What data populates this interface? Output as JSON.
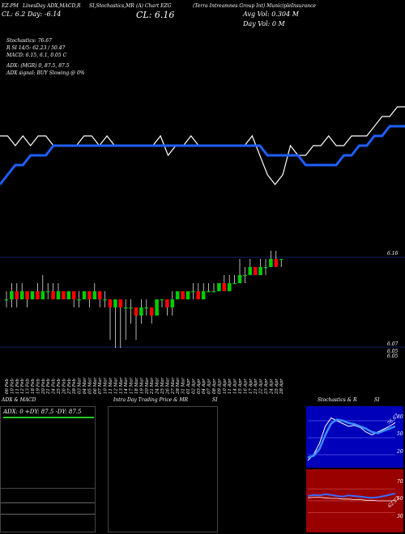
{
  "header": {
    "top_left_small": "EZ-PM",
    "indicators": "LinesDay ADX,MACD,R",
    "stoch_label": "SI,Stochastics,MR",
    "symbol_line": "(A) Chart EZG",
    "company": "(Terra Intreamnes Group Int) MunicipleInsurance",
    "day_open": "CL: 6.2  Day: -6.14",
    "close": "CL: 6.16",
    "avg_vol": "Avg Vol: 0.304  M",
    "day_vol": "Day Vol: 0   M"
  },
  "indicator_readout": {
    "stoch": "Stochastics: 76.67",
    "rsi": "R                    SI 14/5: 62.23 / 50.47",
    "macd": "MACD: 6.15,  6.1,  0.05 C",
    "adx": "ADX:                         (MGR) 0,  87.5,  87.5",
    "adx_signal": "ADX  signal:                               BUY Slowing @ 0%"
  },
  "price_labels": {
    "upper": "6.16",
    "low1": "6.07",
    "low2": "6.05",
    "low3": "6.05"
  },
  "date_labels": [
    "06 Feb",
    "10 Feb",
    "11 Feb",
    "12 Feb",
    "13 Feb",
    "18 Feb",
    "19 Feb",
    "20 Feb",
    "21 Feb",
    "24 Feb",
    "25 Feb",
    "26 Feb",
    "27 Feb",
    "28 Feb",
    "03 Mar",
    "04 Mar",
    "05 Mar",
    "06 Mar",
    "07 Mar",
    "10 Mar",
    "11 Mar",
    "12 Mar",
    "13 Mar",
    "14 Mar",
    "17 Mar",
    "18 Mar",
    "19 Mar",
    "20 Mar",
    "21 Mar",
    "24 Mar",
    "25 Mar",
    "26 Mar",
    "27 Mar",
    "28 Mar",
    "31 Mar",
    "01 Apr",
    "02 Apr",
    "03 Apr",
    "04 Apr",
    "07 Apr",
    "08 Apr",
    "09 Apr",
    "10 Apr",
    "11 Apr",
    "14 Apr",
    "15 Apr",
    "16 Apr",
    "17 Apr",
    "21 Apr",
    "22 Apr",
    "23 Apr",
    "24 Apr",
    "25 Apr",
    "28 Apr"
  ],
  "panels": {
    "adx_title": "ADX  & MACD",
    "adx_readout": "ADX: 0  +DY: 87.5 -DY: 87.5",
    "intraday_title": "Intra  Day Trading Price  & MR",
    "intraday_si": "SI",
    "stoch_title": "Stochastics  & R",
    "stoch_si": "SI",
    "stoch_tick_80": "80",
    "stoch_tick_50": "50",
    "stoch_tick_20": "20",
    "stoch_value": "76.67",
    "rsi_tick_70": "70",
    "rsi_tick_50": "50",
    "rsi_tick_30": "30",
    "rsi_value": "62.23"
  },
  "colors": {
    "up": "#00cc00",
    "down": "#ff0000",
    "blue": "#1f5fff",
    "white": "#ffffff",
    "rsi_bg": "#990000",
    "stoch_bg": "#0000bb",
    "adx_green": "#22cc22"
  },
  "chart_data": {
    "type": "candlestick",
    "price_ylim": [
      6.0,
      6.2
    ],
    "candles": [
      {
        "o": 6.11,
        "c": 6.11,
        "h": 6.12,
        "l": 6.1
      },
      {
        "o": 6.11,
        "c": 6.12,
        "h": 6.13,
        "l": 6.1
      },
      {
        "o": 6.12,
        "c": 6.11,
        "h": 6.13,
        "l": 6.1
      },
      {
        "o": 6.11,
        "c": 6.12,
        "h": 6.13,
        "l": 6.11
      },
      {
        "o": 6.12,
        "c": 6.11,
        "h": 6.12,
        "l": 6.1
      },
      {
        "o": 6.11,
        "c": 6.12,
        "h": 6.12,
        "l": 6.11
      },
      {
        "o": 6.12,
        "c": 6.11,
        "h": 6.13,
        "l": 6.11
      },
      {
        "o": 6.11,
        "c": 6.12,
        "h": 6.14,
        "l": 6.11
      },
      {
        "o": 6.12,
        "c": 6.12,
        "h": 6.13,
        "l": 6.11
      },
      {
        "o": 6.12,
        "c": 6.11,
        "h": 6.13,
        "l": 6.11
      },
      {
        "o": 6.11,
        "c": 6.12,
        "h": 6.13,
        "l": 6.11
      },
      {
        "o": 6.12,
        "c": 6.11,
        "h": 6.12,
        "l": 6.11
      },
      {
        "o": 6.11,
        "c": 6.12,
        "h": 6.12,
        "l": 6.11
      },
      {
        "o": 6.12,
        "c": 6.11,
        "h": 6.12,
        "l": 6.1
      },
      {
        "o": 6.11,
        "c": 6.11,
        "h": 6.12,
        "l": 6.1
      },
      {
        "o": 6.11,
        "c": 6.12,
        "h": 6.12,
        "l": 6.11
      },
      {
        "o": 6.12,
        "c": 6.11,
        "h": 6.12,
        "l": 6.1
      },
      {
        "o": 6.11,
        "c": 6.12,
        "h": 6.13,
        "l": 6.11
      },
      {
        "o": 6.12,
        "c": 6.11,
        "h": 6.12,
        "l": 6.1
      },
      {
        "o": 6.11,
        "c": 6.11,
        "h": 6.12,
        "l": 6.1
      },
      {
        "o": 6.11,
        "c": 6.1,
        "h": 6.11,
        "l": 6.06
      },
      {
        "o": 6.1,
        "c": 6.11,
        "h": 6.11,
        "l": 6.05
      },
      {
        "o": 6.11,
        "c": 6.1,
        "h": 6.11,
        "l": 6.05
      },
      {
        "o": 6.1,
        "c": 6.1,
        "h": 6.11,
        "l": 6.06
      },
      {
        "o": 6.1,
        "c": 6.1,
        "h": 6.11,
        "l": 6.08
      },
      {
        "o": 6.1,
        "c": 6.09,
        "h": 6.1,
        "l": 6.06
      },
      {
        "o": 6.09,
        "c": 6.1,
        "h": 6.11,
        "l": 6.08
      },
      {
        "o": 6.1,
        "c": 6.1,
        "h": 6.11,
        "l": 6.09
      },
      {
        "o": 6.1,
        "c": 6.09,
        "h": 6.1,
        "l": 6.08
      },
      {
        "o": 6.09,
        "c": 6.11,
        "h": 6.11,
        "l": 6.09
      },
      {
        "o": 6.11,
        "c": 6.11,
        "h": 6.11,
        "l": 6.1
      },
      {
        "o": 6.11,
        "c": 6.1,
        "h": 6.11,
        "l": 6.09
      },
      {
        "o": 6.1,
        "c": 6.11,
        "h": 6.12,
        "l": 6.09
      },
      {
        "o": 6.11,
        "c": 6.12,
        "h": 6.12,
        "l": 6.11
      },
      {
        "o": 6.12,
        "c": 6.11,
        "h": 6.12,
        "l": 6.11
      },
      {
        "o": 6.11,
        "c": 6.12,
        "h": 6.12,
        "l": 6.11
      },
      {
        "o": 6.12,
        "c": 6.12,
        "h": 6.13,
        "l": 6.11
      },
      {
        "o": 6.12,
        "c": 6.11,
        "h": 6.13,
        "l": 6.11
      },
      {
        "o": 6.11,
        "c": 6.12,
        "h": 6.13,
        "l": 6.11
      },
      {
        "o": 6.12,
        "c": 6.12,
        "h": 6.13,
        "l": 6.12
      },
      {
        "o": 6.12,
        "c": 6.12,
        "h": 6.13,
        "l": 6.12
      },
      {
        "o": 6.12,
        "c": 6.13,
        "h": 6.13,
        "l": 6.12
      },
      {
        "o": 6.13,
        "c": 6.12,
        "h": 6.14,
        "l": 6.12
      },
      {
        "o": 6.12,
        "c": 6.13,
        "h": 6.14,
        "l": 6.12
      },
      {
        "o": 6.13,
        "c": 6.13,
        "h": 6.14,
        "l": 6.13
      },
      {
        "o": 6.13,
        "c": 6.14,
        "h": 6.16,
        "l": 6.13
      },
      {
        "o": 6.14,
        "c": 6.14,
        "h": 6.15,
        "l": 6.13
      },
      {
        "o": 6.14,
        "c": 6.15,
        "h": 6.16,
        "l": 6.14
      },
      {
        "o": 6.15,
        "c": 6.14,
        "h": 6.15,
        "l": 6.14
      },
      {
        "o": 6.14,
        "c": 6.15,
        "h": 6.16,
        "l": 6.14
      },
      {
        "o": 6.15,
        "c": 6.15,
        "h": 6.16,
        "l": 6.14
      },
      {
        "o": 6.15,
        "c": 6.16,
        "h": 6.17,
        "l": 6.15
      },
      {
        "o": 6.16,
        "c": 6.15,
        "h": 6.17,
        "l": 6.15
      },
      {
        "o": 6.16,
        "c": 6.16,
        "h": 6.16,
        "l": 6.15
      }
    ],
    "white_line": [
      6,
      6,
      5,
      6,
      5,
      6,
      6,
      5,
      5,
      5,
      5,
      6,
      6,
      5,
      6,
      5,
      5,
      5,
      5,
      5,
      5,
      6,
      4,
      5,
      5,
      6,
      5,
      5,
      5,
      5,
      5,
      5,
      5,
      6,
      4,
      2,
      1,
      2,
      5,
      4,
      4,
      5,
      5,
      6,
      5,
      5,
      6,
      6,
      6,
      7,
      8,
      8,
      9,
      9
    ],
    "blue_line": [
      1,
      2,
      3,
      3,
      4,
      4,
      4,
      5,
      5,
      5,
      5,
      5,
      5,
      5,
      5,
      5,
      5,
      5,
      5,
      5,
      5,
      5,
      5,
      5,
      5,
      5,
      5,
      5,
      5,
      5,
      5,
      5,
      5,
      5,
      5,
      4,
      4,
      4,
      4,
      4,
      3,
      3,
      3,
      3,
      3,
      4,
      4,
      5,
      5,
      6,
      6,
      7,
      7,
      7
    ],
    "stoch_k": [
      10,
      20,
      40,
      70,
      85,
      80,
      75,
      70,
      72,
      68,
      60,
      55,
      60,
      65,
      70,
      76.67
    ],
    "stoch_d": [
      15,
      18,
      30,
      55,
      75,
      82,
      80,
      76,
      74,
      70,
      66,
      60,
      58,
      62,
      66,
      70
    ],
    "rsi": [
      58,
      60,
      59,
      61,
      60,
      58,
      57,
      59,
      58,
      57,
      56,
      55,
      56,
      58,
      60,
      62.23
    ],
    "rsi_sig": [
      55,
      56,
      56,
      55,
      54,
      54,
      53,
      53,
      52,
      52,
      51,
      51,
      50,
      50,
      50,
      50.47
    ]
  }
}
